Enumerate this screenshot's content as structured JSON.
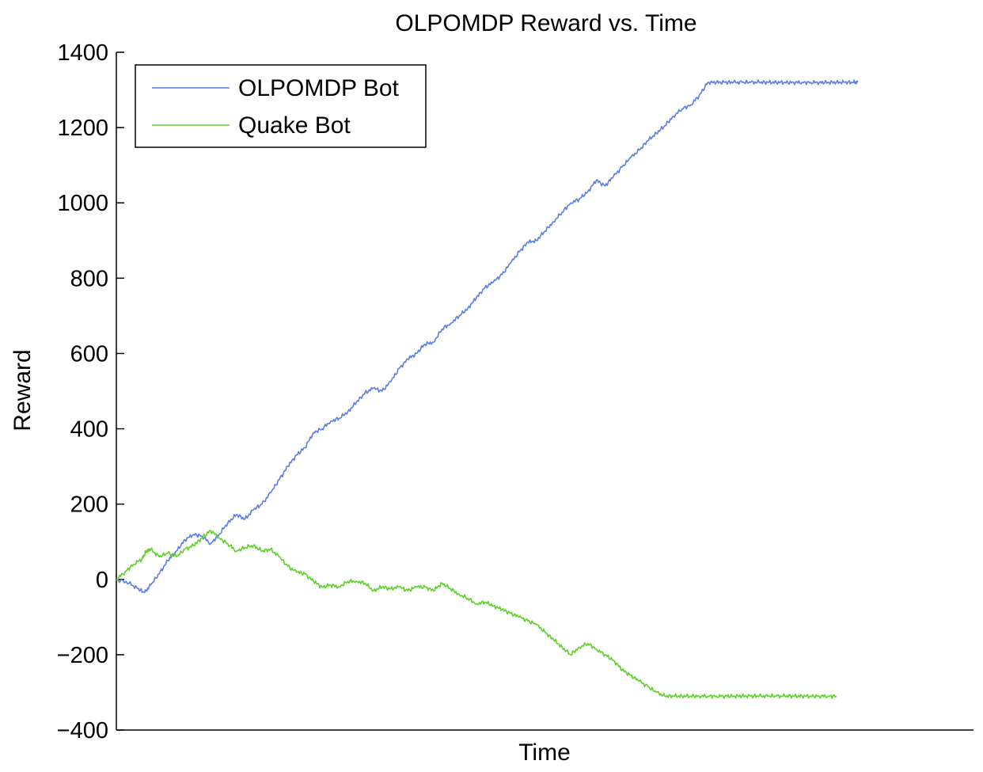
{
  "chart_data": {
    "type": "line",
    "title": "OLPOMDP Reward vs. Time",
    "xlabel": "Time",
    "ylabel": "Reward",
    "ylim": [
      -400,
      1400
    ],
    "yticks": [
      -400,
      -200,
      0,
      200,
      400,
      600,
      800,
      1000,
      1200,
      1400
    ],
    "ytick_labels": [
      "−400",
      "−200",
      "0",
      "200",
      "400",
      "600",
      "800",
      "1000",
      "1200",
      "1400"
    ],
    "xlim": [
      0,
      1000
    ],
    "xticks_shown": false,
    "grid": false,
    "legend_position": "top-left",
    "series": [
      {
        "name": "OLPOMDP Bot",
        "color": "#5b7fe6",
        "x": [
          0,
          15,
          25,
          33,
          40,
          50,
          60,
          70,
          80,
          90,
          100,
          110,
          120,
          130,
          140,
          150,
          160,
          170,
          180,
          190,
          200,
          210,
          220,
          230,
          240,
          250,
          260,
          270,
          280,
          290,
          300,
          310,
          320,
          330,
          340,
          350,
          360,
          370,
          380,
          390,
          400,
          410,
          420,
          430,
          440,
          450,
          460,
          470,
          480,
          490,
          500,
          510,
          520,
          530,
          540,
          550,
          560,
          570,
          580,
          590,
          600,
          610,
          620,
          630,
          640,
          650,
          660,
          670,
          680,
          690,
          700,
          710,
          720,
          730,
          740,
          750,
          760,
          770,
          780,
          790,
          800,
          810,
          820,
          830,
          840,
          850,
          860,
          865
        ],
        "values": [
          0,
          -10,
          -25,
          -35,
          -15,
          15,
          50,
          75,
          105,
          120,
          115,
          95,
          120,
          150,
          172,
          160,
          185,
          200,
          230,
          265,
          300,
          330,
          350,
          390,
          400,
          420,
          428,
          445,
          470,
          495,
          508,
          500,
          525,
          560,
          585,
          600,
          625,
          630,
          665,
          680,
          700,
          720,
          748,
          775,
          790,
          810,
          840,
          870,
          895,
          900,
          925,
          950,
          975,
          1000,
          1010,
          1030,
          1060,
          1045,
          1070,
          1095,
          1120,
          1140,
          1165,
          1185,
          1205,
          1230,
          1250,
          1260,
          1285,
          1320,
          1320,
          1320,
          1320,
          1320,
          1320,
          1320,
          1320,
          1320,
          1320,
          1320,
          1320,
          1320,
          1320,
          1320,
          1320,
          1320,
          1320,
          1320
        ]
      },
      {
        "name": "Quake Bot",
        "color": "#5fd12a",
        "x": [
          0,
          10,
          20,
          30,
          35,
          40,
          50,
          60,
          70,
          80,
          90,
          100,
          110,
          120,
          130,
          140,
          150,
          160,
          170,
          180,
          190,
          200,
          210,
          220,
          230,
          240,
          250,
          260,
          270,
          280,
          290,
          300,
          310,
          320,
          330,
          340,
          350,
          360,
          370,
          380,
          390,
          400,
          410,
          420,
          430,
          440,
          450,
          460,
          470,
          480,
          490,
          500,
          510,
          520,
          530,
          540,
          550,
          560,
          570,
          580,
          590,
          600,
          610,
          620,
          630,
          640,
          650,
          660,
          670,
          680,
          690,
          700,
          710,
          720,
          730,
          740,
          750,
          760,
          770,
          780,
          790,
          800,
          810,
          820,
          830,
          840
        ],
        "values": [
          0,
          20,
          40,
          55,
          75,
          80,
          60,
          70,
          60,
          80,
          90,
          110,
          130,
          110,
          95,
          75,
          85,
          90,
          75,
          80,
          60,
          35,
          20,
          15,
          -5,
          -20,
          -15,
          -20,
          -5,
          -5,
          -10,
          -30,
          -20,
          -25,
          -20,
          -30,
          -20,
          -20,
          -30,
          -10,
          -25,
          -40,
          -50,
          -65,
          -60,
          -70,
          -80,
          -90,
          -100,
          -110,
          -120,
          -140,
          -160,
          -180,
          -200,
          -180,
          -170,
          -185,
          -200,
          -215,
          -240,
          -255,
          -270,
          -285,
          -300,
          -310,
          -310,
          -310,
          -310,
          -310,
          -310,
          -310,
          -310,
          -310,
          -310,
          -310,
          -310,
          -310,
          -310,
          -310,
          -310,
          -310,
          -310,
          -310,
          -310,
          -310
        ]
      }
    ]
  }
}
